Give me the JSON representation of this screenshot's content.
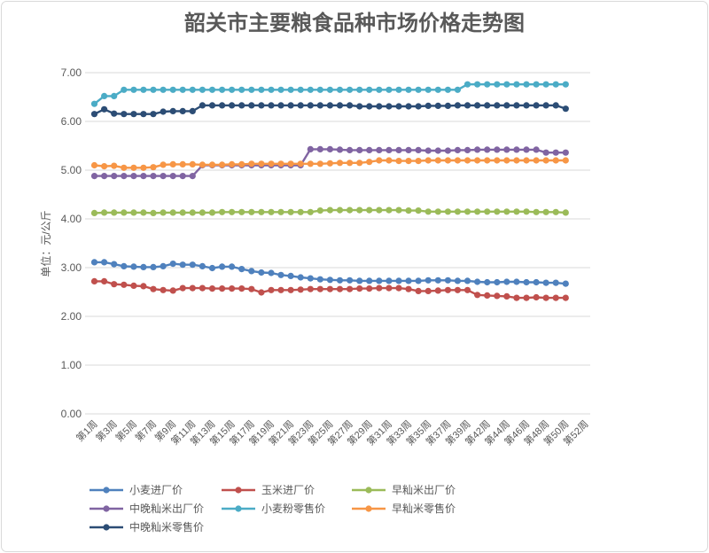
{
  "chart_data": {
    "type": "line",
    "title": "韶关市主要粮食品种市场价格走势图",
    "xlabel": "",
    "ylabel": "单位：元/公斤",
    "ylim": [
      0,
      7
    ],
    "y_tick_labels": [
      "0.00",
      "1.00",
      "2.00",
      "3.00",
      "4.00",
      "5.00",
      "6.00",
      "7.00"
    ],
    "x_tick_labels": [
      "第1周",
      "第3周",
      "第5周",
      "第7周",
      "第9周",
      "第11周",
      "第13周",
      "第15周",
      "第17周",
      "第19周",
      "第21周",
      "第23周",
      "第25周",
      "第27周",
      "第29周",
      "第31周",
      "第33周",
      "第35周",
      "第37周",
      "第39周",
      "第42周",
      "第44周",
      "第46周",
      "第48周",
      "第50周",
      "第52周"
    ],
    "grid": true,
    "legend_position": "bottom",
    "series": [
      {
        "name": "小麦进厂价",
        "color": "#4F81BD",
        "values": [
          3.11,
          3.11,
          3.07,
          3.03,
          3.02,
          3.01,
          3.01,
          3.03,
          3.08,
          3.06,
          3.06,
          3.03,
          2.99,
          3.02,
          3.02,
          2.97,
          2.93,
          2.9,
          2.89,
          2.85,
          2.83,
          2.8,
          2.78,
          2.76,
          2.75,
          2.74,
          2.74,
          2.73,
          2.73,
          2.73,
          2.73,
          2.73,
          2.73,
          2.73,
          2.74,
          2.74,
          2.74,
          2.73,
          2.73,
          2.71,
          2.7,
          2.7,
          2.71,
          2.71,
          2.7,
          2.7,
          2.69,
          2.69,
          2.67
        ]
      },
      {
        "name": "玉米进厂价",
        "color": "#C0504D",
        "values": [
          2.72,
          2.72,
          2.66,
          2.65,
          2.63,
          2.62,
          2.56,
          2.54,
          2.53,
          2.58,
          2.58,
          2.58,
          2.57,
          2.57,
          2.57,
          2.57,
          2.56,
          2.49,
          2.54,
          2.54,
          2.54,
          2.55,
          2.56,
          2.56,
          2.56,
          2.56,
          2.56,
          2.57,
          2.57,
          2.58,
          2.58,
          2.58,
          2.56,
          2.52,
          2.52,
          2.53,
          2.54,
          2.54,
          2.54,
          2.44,
          2.43,
          2.42,
          2.41,
          2.38,
          2.38,
          2.39,
          2.38,
          2.38,
          2.38
        ]
      },
      {
        "name": "早籼米出厂价",
        "color": "#9BBB59",
        "values": [
          4.12,
          4.13,
          4.13,
          4.13,
          4.13,
          4.13,
          4.12,
          4.13,
          4.13,
          4.13,
          4.13,
          4.13,
          4.13,
          4.14,
          4.14,
          4.14,
          4.14,
          4.14,
          4.14,
          4.14,
          4.14,
          4.14,
          4.14,
          4.17,
          4.18,
          4.18,
          4.18,
          4.18,
          4.18,
          4.18,
          4.18,
          4.18,
          4.17,
          4.17,
          4.15,
          4.15,
          4.15,
          4.15,
          4.15,
          4.15,
          4.15,
          4.15,
          4.15,
          4.15,
          4.15,
          4.14,
          4.14,
          4.14,
          4.13
        ]
      },
      {
        "name": "中晚籼米出厂价",
        "color": "#8064A2",
        "values": [
          4.88,
          4.88,
          4.88,
          4.88,
          4.88,
          4.88,
          4.88,
          4.88,
          4.88,
          4.88,
          4.88,
          5.1,
          5.1,
          5.1,
          5.1,
          5.1,
          5.1,
          5.1,
          5.1,
          5.1,
          5.1,
          5.1,
          5.43,
          5.43,
          5.43,
          5.42,
          5.41,
          5.41,
          5.41,
          5.41,
          5.41,
          5.41,
          5.41,
          5.41,
          5.4,
          5.4,
          5.4,
          5.41,
          5.41,
          5.42,
          5.42,
          5.42,
          5.42,
          5.42,
          5.42,
          5.42,
          5.36,
          5.36,
          5.36
        ]
      },
      {
        "name": "小麦粉零售价",
        "color": "#4BACC6",
        "values": [
          6.36,
          6.52,
          6.52,
          6.65,
          6.65,
          6.65,
          6.65,
          6.65,
          6.65,
          6.65,
          6.65,
          6.65,
          6.65,
          6.65,
          6.65,
          6.65,
          6.65,
          6.65,
          6.65,
          6.65,
          6.65,
          6.65,
          6.65,
          6.65,
          6.65,
          6.65,
          6.65,
          6.65,
          6.65,
          6.65,
          6.65,
          6.65,
          6.65,
          6.65,
          6.65,
          6.65,
          6.65,
          6.65,
          6.76,
          6.76,
          6.76,
          6.76,
          6.76,
          6.76,
          6.76,
          6.76,
          6.76,
          6.76,
          6.76
        ]
      },
      {
        "name": "早籼米零售价",
        "color": "#F79646",
        "values": [
          5.1,
          5.08,
          5.09,
          5.05,
          5.05,
          5.05,
          5.06,
          5.11,
          5.12,
          5.12,
          5.12,
          5.11,
          5.11,
          5.11,
          5.12,
          5.12,
          5.13,
          5.13,
          5.13,
          5.13,
          5.13,
          5.13,
          5.13,
          5.13,
          5.14,
          5.15,
          5.15,
          5.15,
          5.17,
          5.2,
          5.2,
          5.19,
          5.19,
          5.19,
          5.2,
          5.2,
          5.2,
          5.2,
          5.2,
          5.2,
          5.2,
          5.2,
          5.2,
          5.2,
          5.2,
          5.2,
          5.2,
          5.2,
          5.2
        ]
      },
      {
        "name": "中晚籼米零售价",
        "color": "#2C4D75",
        "values": [
          6.15,
          6.25,
          6.16,
          6.15,
          6.15,
          6.15,
          6.15,
          6.2,
          6.21,
          6.21,
          6.21,
          6.33,
          6.33,
          6.33,
          6.33,
          6.33,
          6.33,
          6.33,
          6.33,
          6.33,
          6.33,
          6.33,
          6.33,
          6.33,
          6.33,
          6.33,
          6.33,
          6.31,
          6.31,
          6.31,
          6.31,
          6.31,
          6.31,
          6.31,
          6.32,
          6.32,
          6.32,
          6.33,
          6.33,
          6.33,
          6.33,
          6.33,
          6.33,
          6.33,
          6.33,
          6.33,
          6.33,
          6.33,
          6.26
        ]
      }
    ]
  }
}
